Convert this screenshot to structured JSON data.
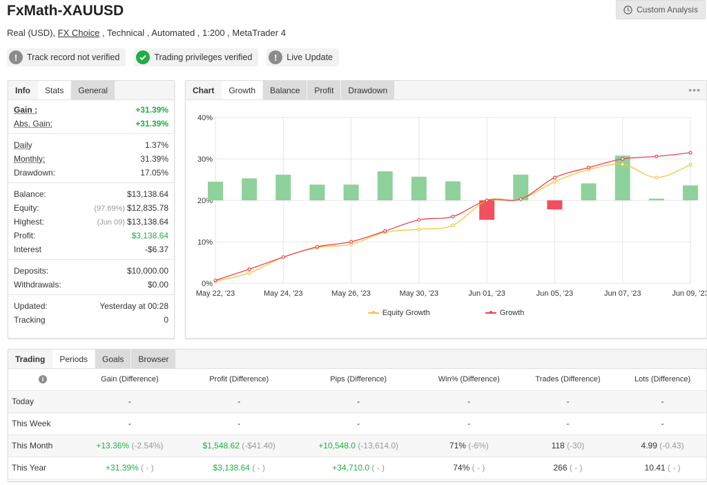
{
  "header": {
    "title": "FxMath-XAUUSD",
    "subtitle_pre": "Real (USD), ",
    "subtitle_link": "FX Choice",
    "subtitle_post": " , Technical , Automated , 1:200 , MetaTrader 4",
    "custom_analysis": "Custom Analysis"
  },
  "badges": [
    {
      "label": "Track record not verified",
      "icon": "exclamation-icon",
      "color": "#8c8c8c"
    },
    {
      "label": "Trading privileges verified",
      "icon": "check-icon",
      "color": "#1fae45"
    },
    {
      "label": "Live Update",
      "icon": "exclamation-icon",
      "color": "#8c8c8c"
    }
  ],
  "info_panel": {
    "tabs": [
      "Info",
      "Stats",
      "General"
    ],
    "groups": [
      [
        {
          "label": "Gain :",
          "value": "+31.39%"
        },
        {
          "label": "Abs. Gain:",
          "value": "+31.39%"
        }
      ],
      [
        {
          "label": "Daily",
          "value": "1.37%"
        },
        {
          "label": "Monthly:",
          "value": "31.39%"
        },
        {
          "label": "Drawdown:",
          "value": "17.05%"
        }
      ],
      [
        {
          "label": "Balance:",
          "value": "$13,138.64"
        },
        {
          "label": "Equity:",
          "pre": "(97.69%)",
          "value": "$12,835.78"
        },
        {
          "label": "Highest:",
          "pre": "(Jun 09)",
          "value": "$13,138.64"
        },
        {
          "label": "Profit:",
          "value": "$3,138.64"
        },
        {
          "label": "Interest",
          "value": "-$6.37"
        }
      ],
      [
        {
          "label": "Deposits:",
          "value": "$10,000.00"
        },
        {
          "label": "Withdrawals:",
          "value": "$0.00"
        }
      ],
      [
        {
          "label": "Updated:",
          "value": "Yesterday at 00:28"
        },
        {
          "label": "Tracking",
          "value": "0"
        }
      ]
    ]
  },
  "chart_panel": {
    "tabs": [
      "Chart",
      "Growth",
      "Balance",
      "Profit",
      "Drawdown"
    ],
    "more": "•••"
  },
  "chart_data": {
    "type": "bar",
    "ylim": [
      0,
      40
    ],
    "yticks": [
      "0%",
      "10%",
      "20%",
      "30%",
      "40%"
    ],
    "xticks": [
      "May 22, '23",
      "May 24, '23",
      "May 26, '23",
      "May 30, '23",
      "Jun 01, '23",
      "Jun 05, '23",
      "Jun 07, '23",
      "Jun 09, '23"
    ],
    "bars": [
      24.5,
      25.3,
      26.2,
      23.8,
      23.8,
      27.0,
      25.7,
      24.6,
      15.3,
      26.2,
      17.8,
      24.1,
      30.8,
      20.4,
      23.6
    ],
    "bar_colors": {
      "up": "#8fd19b",
      "down": "#f2505f"
    },
    "series": [
      {
        "name": "Equity Growth",
        "color": "#f6c43a",
        "values": [
          0.5,
          2.5,
          6.3,
          8.6,
          9.4,
          12.3,
          13.0,
          14.0,
          20.0,
          20.3,
          24.5,
          27.4,
          28.7,
          25.5,
          28.6
        ]
      },
      {
        "name": "Growth",
        "color": "#e9424e",
        "values": [
          0.7,
          3.4,
          6.3,
          8.8,
          10.0,
          12.6,
          15.3,
          16.1,
          20.0,
          20.3,
          25.5,
          27.9,
          30.0,
          30.6,
          31.5
        ]
      }
    ]
  },
  "periods_panel": {
    "tabs": [
      "Trading",
      "Periods",
      "Goals",
      "Browser"
    ],
    "columns": [
      "Gain (Difference)",
      "Profit (Difference)",
      "Pips (Difference)",
      "Win% (Difference)",
      "Trades (Difference)",
      "Lots (Difference)"
    ],
    "rows": [
      {
        "period": "Today",
        "cells": [
          {
            "v": "-",
            "d": ""
          },
          {
            "v": "-",
            "d": ""
          },
          {
            "v": "-",
            "d": ""
          },
          {
            "v": "-",
            "d": ""
          },
          {
            "v": "-",
            "d": ""
          },
          {
            "v": "-",
            "d": ""
          }
        ]
      },
      {
        "period": "This Week",
        "cells": [
          {
            "v": "-",
            "d": ""
          },
          {
            "v": "-",
            "d": ""
          },
          {
            "v": "-",
            "d": ""
          },
          {
            "v": "-",
            "d": ""
          },
          {
            "v": "-",
            "d": ""
          },
          {
            "v": "-",
            "d": ""
          }
        ]
      },
      {
        "period": "This Month",
        "cells": [
          {
            "v": "+13.36%",
            "d": "(-2.54%)",
            "g": true
          },
          {
            "v": "$1,548.62",
            "d": "(-$41.40)",
            "g": true
          },
          {
            "v": "+10,548.0",
            "d": "(-13,614.0)",
            "g": true
          },
          {
            "v": "71%",
            "d": "(-6%)"
          },
          {
            "v": "118",
            "d": "(-30)"
          },
          {
            "v": "4.99",
            "d": "(-0.43)"
          }
        ]
      },
      {
        "period": "This Year",
        "cells": [
          {
            "v": "+31.39%",
            "d": "( - )",
            "g": true
          },
          {
            "v": "$3,138.64",
            "d": "( - )",
            "g": true
          },
          {
            "v": "+34,710.0",
            "d": "( - )",
            "g": true
          },
          {
            "v": "74%",
            "d": "( - )"
          },
          {
            "v": "266",
            "d": "( - )"
          },
          {
            "v": "10.41",
            "d": "( - )"
          }
        ]
      }
    ]
  }
}
